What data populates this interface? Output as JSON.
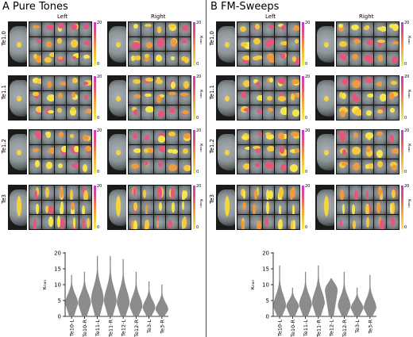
{
  "panels": [
    {
      "title": "A Pure Tones",
      "hemispheres": [
        "Left",
        "Right"
      ],
      "rows": [
        "Te1.0",
        "Te1.1",
        "Te1.2",
        "Te3"
      ],
      "colorbar": {
        "max": "20",
        "min": "0",
        "label": "κₙₐₙ"
      },
      "chart_data": {
        "type": "violin",
        "categories": [
          "Te10-L",
          "Te10-R",
          "Te11-L",
          "Te11-R",
          "Te12-L",
          "Te12-R",
          "Te3-L",
          "Te3-R"
        ],
        "ylabel": "κₙₐₙ",
        "ylim": [
          0,
          20
        ],
        "yticks": [
          0,
          5,
          10,
          15,
          20
        ],
        "series": [
          {
            "values_max": [
              13,
              14,
              19,
              19,
              18,
              14,
              11,
              10
            ],
            "mode": [
              4,
              4,
              5,
              4.5,
              4,
              3,
              2.5,
              2
            ]
          }
        ]
      }
    },
    {
      "title": "B FM-Sweeps",
      "hemispheres": [
        "Left",
        "Right"
      ],
      "rows": [
        "Te1.0",
        "Te1.1",
        "Te1.2",
        "Te3"
      ],
      "colorbar": {
        "max": "20",
        "min": "0",
        "label": "κₙₐₙ"
      },
      "chart_data": {
        "type": "violin",
        "categories": [
          "Te10-L",
          "Te10-R",
          "Te11-L",
          "Te11-R",
          "Te12-L",
          "Te12-R",
          "Te3-L",
          "Te3-R"
        ],
        "ylabel": "κₙₐₙ",
        "ylim": [
          0,
          20
        ],
        "yticks": [
          0,
          5,
          10,
          15,
          20
        ],
        "series": [
          {
            "values_max": [
              16,
              9,
              14,
              16,
              12,
              14,
              9,
              13
            ],
            "mode": [
              3,
              3,
              3.5,
              4,
              8,
              3,
              2.5,
              2.5
            ]
          }
        ]
      }
    }
  ]
}
